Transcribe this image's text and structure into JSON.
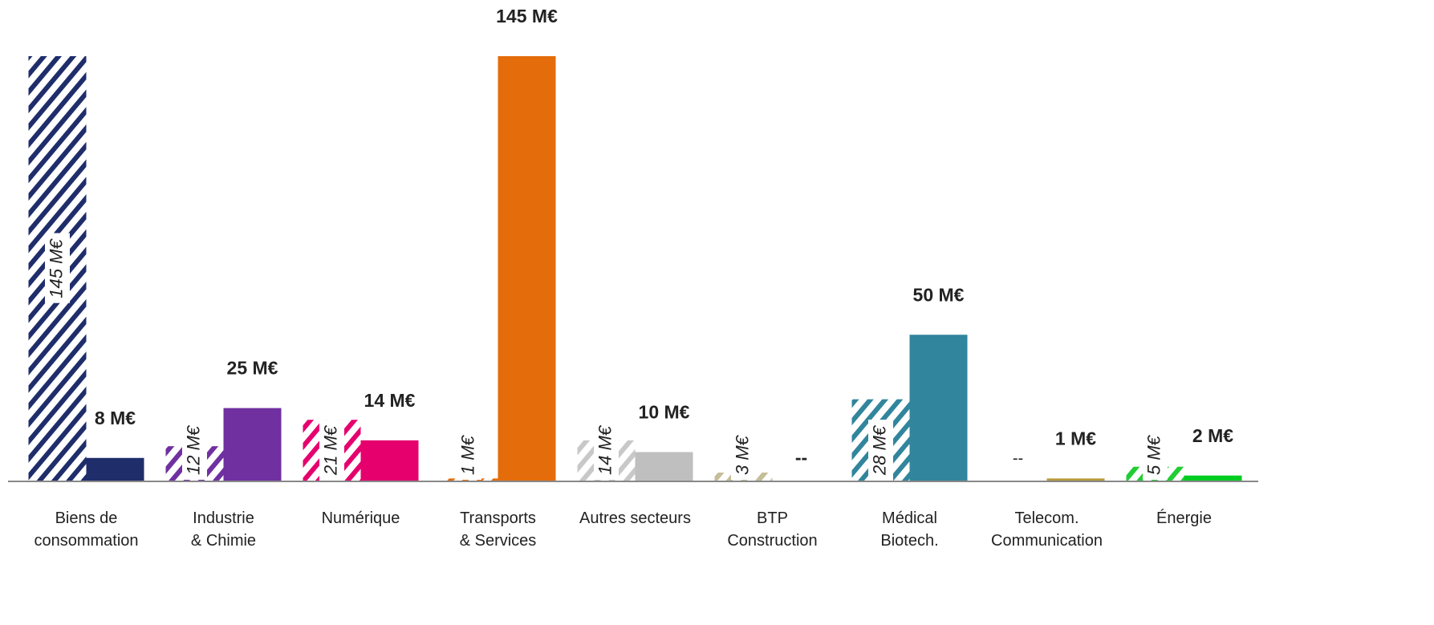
{
  "chart_data": {
    "type": "bar",
    "categories": [
      "Biens de\nconsommation",
      "Industrie\n& Chimie",
      "Numérique",
      "Transports\n& Services",
      "Autres secteurs",
      "BTP\nConstruction",
      "Médical\nBiotech.",
      "Telecom.\nCommunication",
      "Énergie"
    ],
    "series": [
      {
        "hatched": true,
        "values": [
          145,
          12,
          21,
          1,
          14,
          3,
          28,
          null,
          5
        ],
        "value_labels": [
          "145 M€",
          "12 M€",
          "21 M€",
          "1 M€",
          "14 M€",
          "3 M€",
          "28 M€",
          "--",
          "5 M€"
        ],
        "colors": [
          "#1f2d6b",
          "#7030a0",
          "#e5006e",
          "#e46c0a",
          "#c8c8c8",
          "#c4bd97",
          "#31859c",
          "#b89a3a",
          "#22cc33"
        ]
      },
      {
        "hatched": false,
        "values": [
          8,
          25,
          14,
          145,
          10,
          null,
          50,
          1,
          2
        ],
        "value_labels": [
          "8 M€",
          "25 M€",
          "14 M€",
          "145 M€",
          "10 M€",
          "--",
          "50 M€",
          "1 M€",
          "2 M€"
        ],
        "colors": [
          "#1f2d6b",
          "#7030a0",
          "#e5006e",
          "#e46c0a",
          "#bfbfbf",
          "#c4bd97",
          "#31859c",
          "#b89a3a",
          "#00cc22"
        ]
      }
    ],
    "ylim": [
      0,
      145
    ]
  }
}
